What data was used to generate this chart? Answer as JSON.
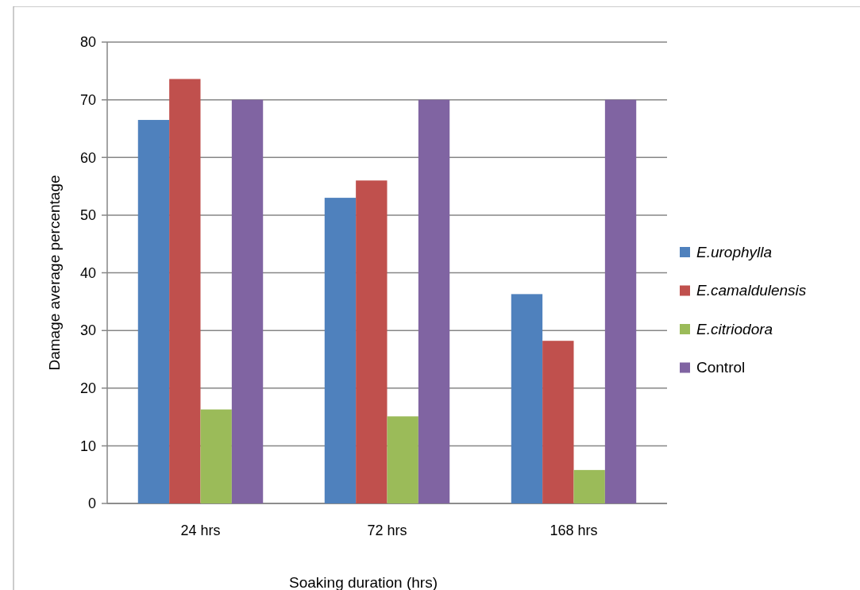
{
  "chart_data": {
    "type": "bar",
    "xlabel": "Soaking duration (hrs)",
    "ylabel": "Damage average percentage",
    "categories": [
      "24 hrs",
      "72 hrs",
      "168 hrs"
    ],
    "series": [
      {
        "name": "E.urophylla",
        "color": "#4f81bd",
        "values": [
          66.5,
          53,
          36.3
        ]
      },
      {
        "name": "E.camaldulensis",
        "color": "#c0504d",
        "values": [
          73.6,
          56,
          28.2
        ]
      },
      {
        "name": "E.citriodora",
        "color": "#9bbb59",
        "values": [
          16.3,
          15.1,
          5.8
        ]
      },
      {
        "name": "Control",
        "color": "#8064a2",
        "values": [
          70,
          70,
          70
        ]
      }
    ],
    "ylim": [
      0,
      80
    ],
    "yticks": [
      0,
      10,
      20,
      30,
      40,
      50,
      60,
      70,
      80
    ],
    "grid": "y",
    "legend": "right"
  }
}
